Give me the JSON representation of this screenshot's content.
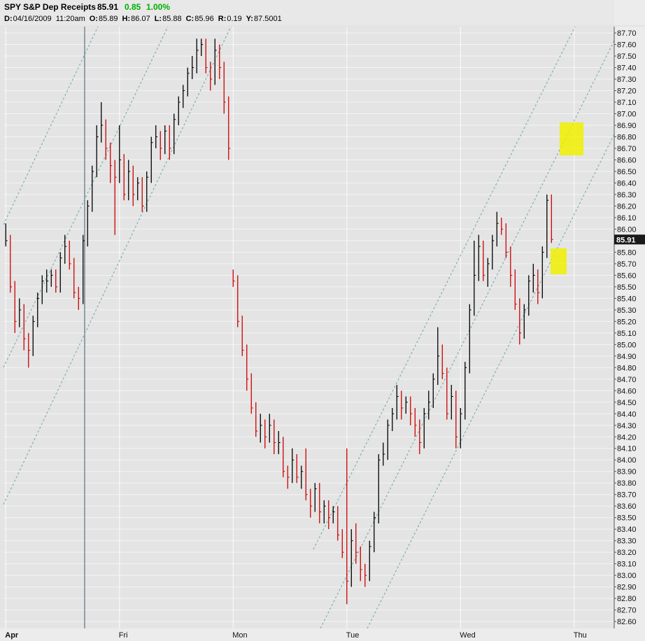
{
  "header": {
    "symbol": "SPY S&P Dep Receipts",
    "last": 85.91,
    "change": 0.85,
    "change_pct": "1.00%",
    "info": [
      {
        "label": "D:",
        "value": "04/16/2009  11:20am"
      },
      {
        "label": "O:",
        "value": "85.89"
      },
      {
        "label": "H:",
        "value": "86.07"
      },
      {
        "label": "L:",
        "value": "85.88"
      },
      {
        "label": "C:",
        "value": "85.96"
      },
      {
        "label": "R:",
        "value": "0.19"
      },
      {
        "label": "Y:",
        "value": "87.5001"
      }
    ]
  },
  "chart_data": {
    "type": "hlc",
    "up_color": "#000000",
    "down_color": "#cc0000",
    "grid": true,
    "xlim": [
      -0.5,
      133.8
    ],
    "ylim": [
      82.54,
      87.755
    ],
    "xticks": [
      {
        "value": 0,
        "label": "Apr"
      },
      {
        "value": 25,
        "label": "Fri"
      },
      {
        "value": 50,
        "label": "Mon"
      },
      {
        "value": 75,
        "label": "Tue"
      },
      {
        "value": 100,
        "label": "Wed"
      },
      {
        "value": 125,
        "label": "Thu"
      }
    ],
    "yticks": [
      {
        "value": 82.6,
        "label": "82.60"
      },
      {
        "value": 82.7,
        "label": "82.70"
      },
      {
        "value": 82.8,
        "label": "82.80"
      },
      {
        "value": 82.9,
        "label": "82.90"
      },
      {
        "value": 83,
        "label": "83.00"
      },
      {
        "value": 83.1,
        "label": "83.10"
      },
      {
        "value": 83.2,
        "label": "83.20"
      },
      {
        "value": 83.3,
        "label": "83.30"
      },
      {
        "value": 83.4,
        "label": "83.40"
      },
      {
        "value": 83.5,
        "label": "83.50"
      },
      {
        "value": 83.6,
        "label": "83.60"
      },
      {
        "value": 83.7,
        "label": "83.70"
      },
      {
        "value": 83.8,
        "label": "83.80"
      },
      {
        "value": 83.9,
        "label": "83.90"
      },
      {
        "value": 84,
        "label": "84.00"
      },
      {
        "value": 84.1,
        "label": "84.10"
      },
      {
        "value": 84.2,
        "label": "84.20"
      },
      {
        "value": 84.3,
        "label": "84.30"
      },
      {
        "value": 84.4,
        "label": "84.40"
      },
      {
        "value": 84.5,
        "label": "84.50"
      },
      {
        "value": 84.6,
        "label": "84.60"
      },
      {
        "value": 84.7,
        "label": "84.70"
      },
      {
        "value": 84.8,
        "label": "84.80"
      },
      {
        "value": 84.9,
        "label": "84.90"
      },
      {
        "value": 85,
        "label": "85.00"
      },
      {
        "value": 85.1,
        "label": "85.10"
      },
      {
        "value": 85.2,
        "label": "85.20"
      },
      {
        "value": 85.3,
        "label": "85.30"
      },
      {
        "value": 85.4,
        "label": "85.40"
      },
      {
        "value": 85.5,
        "label": "85.50"
      },
      {
        "value": 85.6,
        "label": "85.60"
      },
      {
        "value": 85.7,
        "label": "85.70"
      },
      {
        "value": 85.8,
        "label": "85.80"
      },
      {
        "value": 85.9,
        "label": "85.90"
      },
      {
        "value": 86,
        "label": "86.00"
      },
      {
        "value": 86.1,
        "label": "86.10"
      },
      {
        "value": 86.2,
        "label": "86.20"
      },
      {
        "value": 86.3,
        "label": "86.30"
      },
      {
        "value": 86.4,
        "label": "86.40"
      },
      {
        "value": 86.5,
        "label": "86.50"
      },
      {
        "value": 86.6,
        "label": "86.60"
      },
      {
        "value": 86.7,
        "label": "86.70"
      },
      {
        "value": 86.8,
        "label": "86.80"
      },
      {
        "value": 86.9,
        "label": "86.90"
      },
      {
        "value": 87,
        "label": "87.00"
      },
      {
        "value": 87.1,
        "label": "87.10"
      },
      {
        "value": 87.2,
        "label": "87.20"
      },
      {
        "value": 87.3,
        "label": "87.30"
      },
      {
        "value": 87.4,
        "label": "87.40"
      },
      {
        "value": 87.5,
        "label": "87.50"
      },
      {
        "value": 87.6,
        "label": "87.60"
      },
      {
        "value": 87.7,
        "label": "87.70"
      }
    ],
    "high": [
      86.05,
      85.95,
      85.55,
      85.4,
      85.35,
      85.1,
      85.25,
      85.45,
      85.6,
      85.65,
      85.65,
      85.65,
      85.8,
      85.95,
      85.9,
      85.75,
      85.5,
      85.95,
      86.25,
      86.55,
      86.9,
      87.1,
      86.95,
      86.75,
      86.6,
      86.9,
      86.65,
      86.6,
      86.55,
      86.45,
      86.45,
      86.5,
      86.8,
      86.9,
      86.85,
      86.9,
      86.9,
      87.0,
      87.15,
      87.25,
      87.4,
      87.5,
      87.65,
      87.65,
      87.65,
      87.45,
      87.65,
      87.6,
      87.45,
      87.15,
      85.65,
      85.6,
      85.25,
      85.0,
      84.75,
      84.5,
      84.4,
      84.35,
      84.4,
      84.35,
      84.25,
      84.2,
      83.95,
      84.1,
      84.05,
      83.95,
      84.1,
      83.75,
      83.8,
      83.8,
      83.65,
      83.65,
      83.6,
      83.6,
      83.4,
      84.1,
      83.4,
      83.45,
      83.25,
      83.1,
      83.3,
      83.55,
      84.05,
      84.15,
      84.35,
      84.45,
      84.65,
      84.6,
      84.55,
      84.55,
      84.45,
      84.35,
      84.45,
      84.6,
      84.75,
      85.15,
      85.0,
      84.8,
      84.65,
      84.6,
      84.45,
      84.85,
      85.35,
      85.9,
      85.95,
      85.9,
      85.75,
      85.95,
      86.15,
      86.1,
      86.05,
      85.85,
      85.65,
      85.4,
      85.35,
      85.6,
      85.7,
      85.65,
      85.85,
      86.3,
      86.3
    ],
    "low": [
      85.85,
      85.45,
      85.1,
      85.15,
      84.95,
      84.8,
      84.9,
      85.15,
      85.35,
      85.45,
      85.5,
      85.45,
      85.45,
      85.7,
      85.65,
      85.4,
      85.3,
      85.35,
      85.85,
      86.15,
      86.45,
      86.75,
      86.6,
      86.4,
      85.95,
      86.4,
      86.25,
      86.25,
      86.2,
      86.25,
      86.15,
      86.15,
      86.4,
      86.7,
      86.6,
      86.65,
      86.6,
      86.65,
      86.9,
      87.05,
      87.15,
      87.3,
      87.35,
      87.5,
      87.35,
      87.2,
      87.25,
      87.3,
      87.0,
      86.6,
      85.5,
      85.15,
      84.9,
      84.6,
      84.4,
      84.2,
      84.15,
      84.1,
      84.15,
      84.05,
      84.05,
      83.85,
      83.75,
      83.8,
      83.8,
      83.75,
      83.65,
      83.5,
      83.55,
      83.45,
      83.45,
      83.4,
      83.45,
      83.3,
      83.15,
      82.75,
      82.9,
      83.1,
      82.95,
      82.9,
      82.95,
      83.2,
      83.45,
      83.95,
      84.0,
      84.25,
      84.35,
      84.35,
      84.4,
      84.3,
      84.2,
      84.05,
      84.1,
      84.35,
      84.45,
      84.65,
      84.7,
      84.35,
      84.35,
      84.1,
      84.1,
      84.35,
      84.75,
      85.25,
      85.55,
      85.55,
      85.5,
      85.65,
      85.85,
      85.95,
      85.75,
      85.5,
      85.3,
      85.0,
      85.05,
      85.25,
      85.45,
      85.35,
      85.4,
      85.75,
      85.88
    ],
    "close": [
      85.9,
      85.5,
      85.2,
      85.3,
      85.05,
      84.95,
      85.2,
      85.4,
      85.55,
      85.55,
      85.6,
      85.5,
      85.75,
      85.85,
      85.7,
      85.45,
      85.4,
      85.9,
      86.2,
      86.5,
      86.8,
      86.9,
      86.7,
      86.55,
      86.45,
      86.6,
      86.3,
      86.5,
      86.3,
      86.4,
      86.2,
      86.45,
      86.75,
      86.8,
      86.7,
      86.85,
      86.7,
      86.95,
      87.1,
      87.2,
      87.35,
      87.4,
      87.55,
      87.6,
      87.4,
      87.3,
      87.55,
      87.4,
      87.1,
      86.7,
      85.55,
      85.2,
      84.95,
      84.7,
      84.45,
      84.25,
      84.3,
      84.2,
      84.3,
      84.15,
      84.15,
      83.9,
      83.85,
      84.0,
      83.85,
      83.9,
      83.7,
      83.6,
      83.75,
      83.55,
      83.6,
      83.5,
      83.55,
      83.35,
      83.2,
      82.95,
      83.3,
      83.2,
      83.05,
      83.0,
      83.25,
      83.5,
      84.0,
      84.05,
      84.3,
      84.4,
      84.55,
      84.45,
      84.5,
      84.4,
      84.3,
      84.15,
      84.4,
      84.5,
      84.7,
      84.9,
      84.75,
      84.4,
      84.55,
      84.2,
      84.4,
      84.8,
      85.3,
      85.6,
      85.85,
      85.6,
      85.7,
      85.9,
      86.05,
      86.0,
      85.8,
      85.6,
      85.35,
      85.1,
      85.3,
      85.55,
      85.6,
      85.45,
      85.8,
      86.25,
      85.91
    ]
  }
}
